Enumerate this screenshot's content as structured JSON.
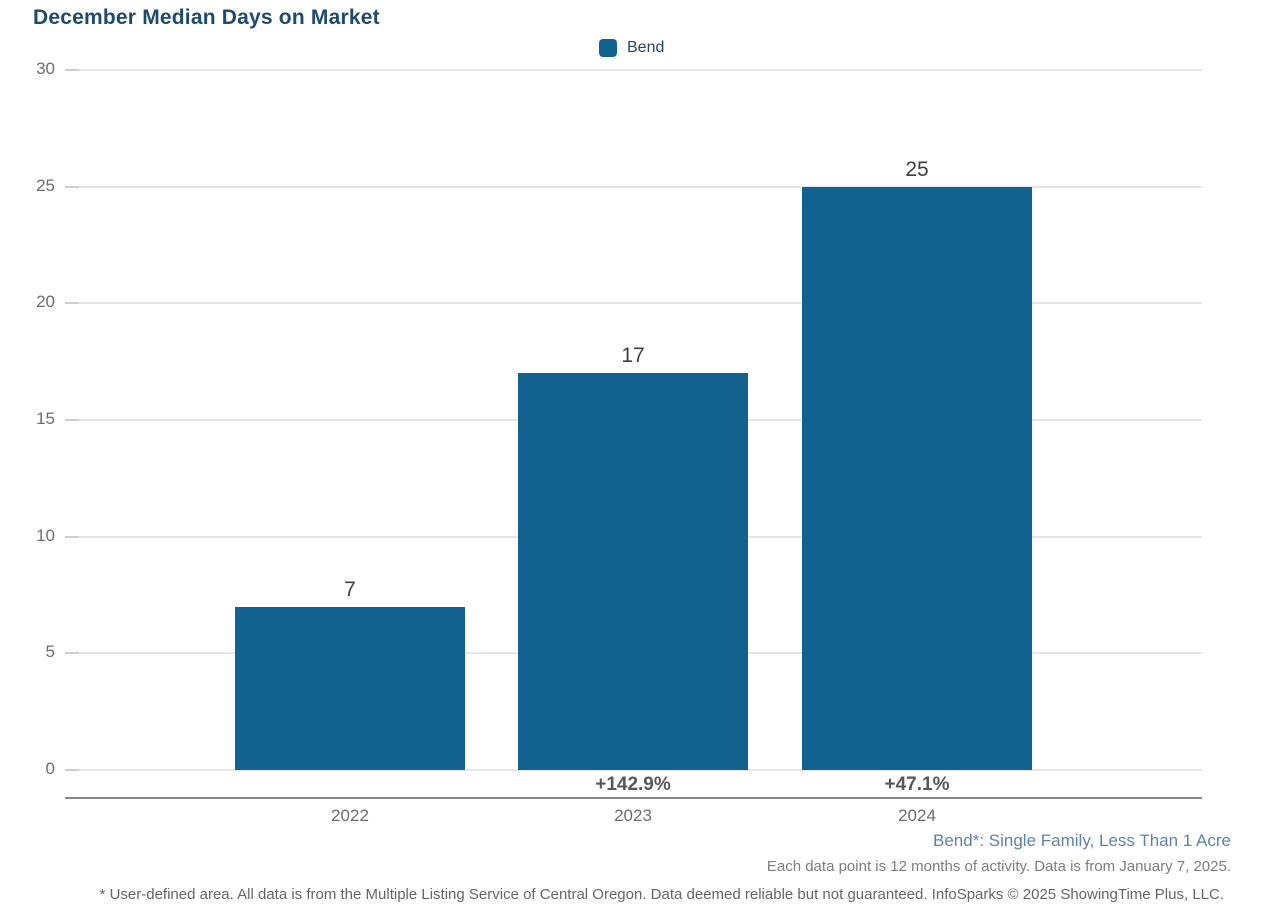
{
  "title": "December Median Days on Market",
  "legend": {
    "label": "Bend",
    "swatch_color": "#12618e"
  },
  "chart_data": {
    "type": "bar",
    "title": "December Median Days on Market",
    "categories": [
      "2022",
      "2023",
      "2024"
    ],
    "series": [
      {
        "name": "Bend",
        "values": [
          7,
          17,
          25
        ]
      }
    ],
    "value_labels": [
      "7",
      "17",
      "25"
    ],
    "pct_change_labels": [
      null,
      "+142.9%",
      "+47.1%"
    ],
    "xlabel": "",
    "ylabel": "",
    "ylim": [
      0,
      30
    ],
    "yticks": [
      0,
      5,
      10,
      15,
      20,
      25,
      30
    ],
    "grid": true,
    "legend_position": "top-center",
    "bar_color": "#12618e"
  },
  "footnotes": {
    "series_note": "Bend*: Single Family, Less Than 1 Acre",
    "activity_note": "Each data point is 12 months of activity. Data is from January 7, 2025.",
    "disclaimer": "* User-defined area. All data is from the Multiple Listing Service of Central Oregon. Data deemed reliable but not guaranteed. InfoSparks © 2025 ShowingTime Plus, LLC."
  },
  "colors": {
    "title": "#1e4a70",
    "bar": "#12618e",
    "gridline": "#e6e6e6",
    "axis_line": "#8a8a8a",
    "tick_text": "#6e6e6e",
    "value_label": "#3f3f3f",
    "pct_label": "#575757",
    "series_note": "#5d83ab",
    "footer_text": "#666666"
  }
}
